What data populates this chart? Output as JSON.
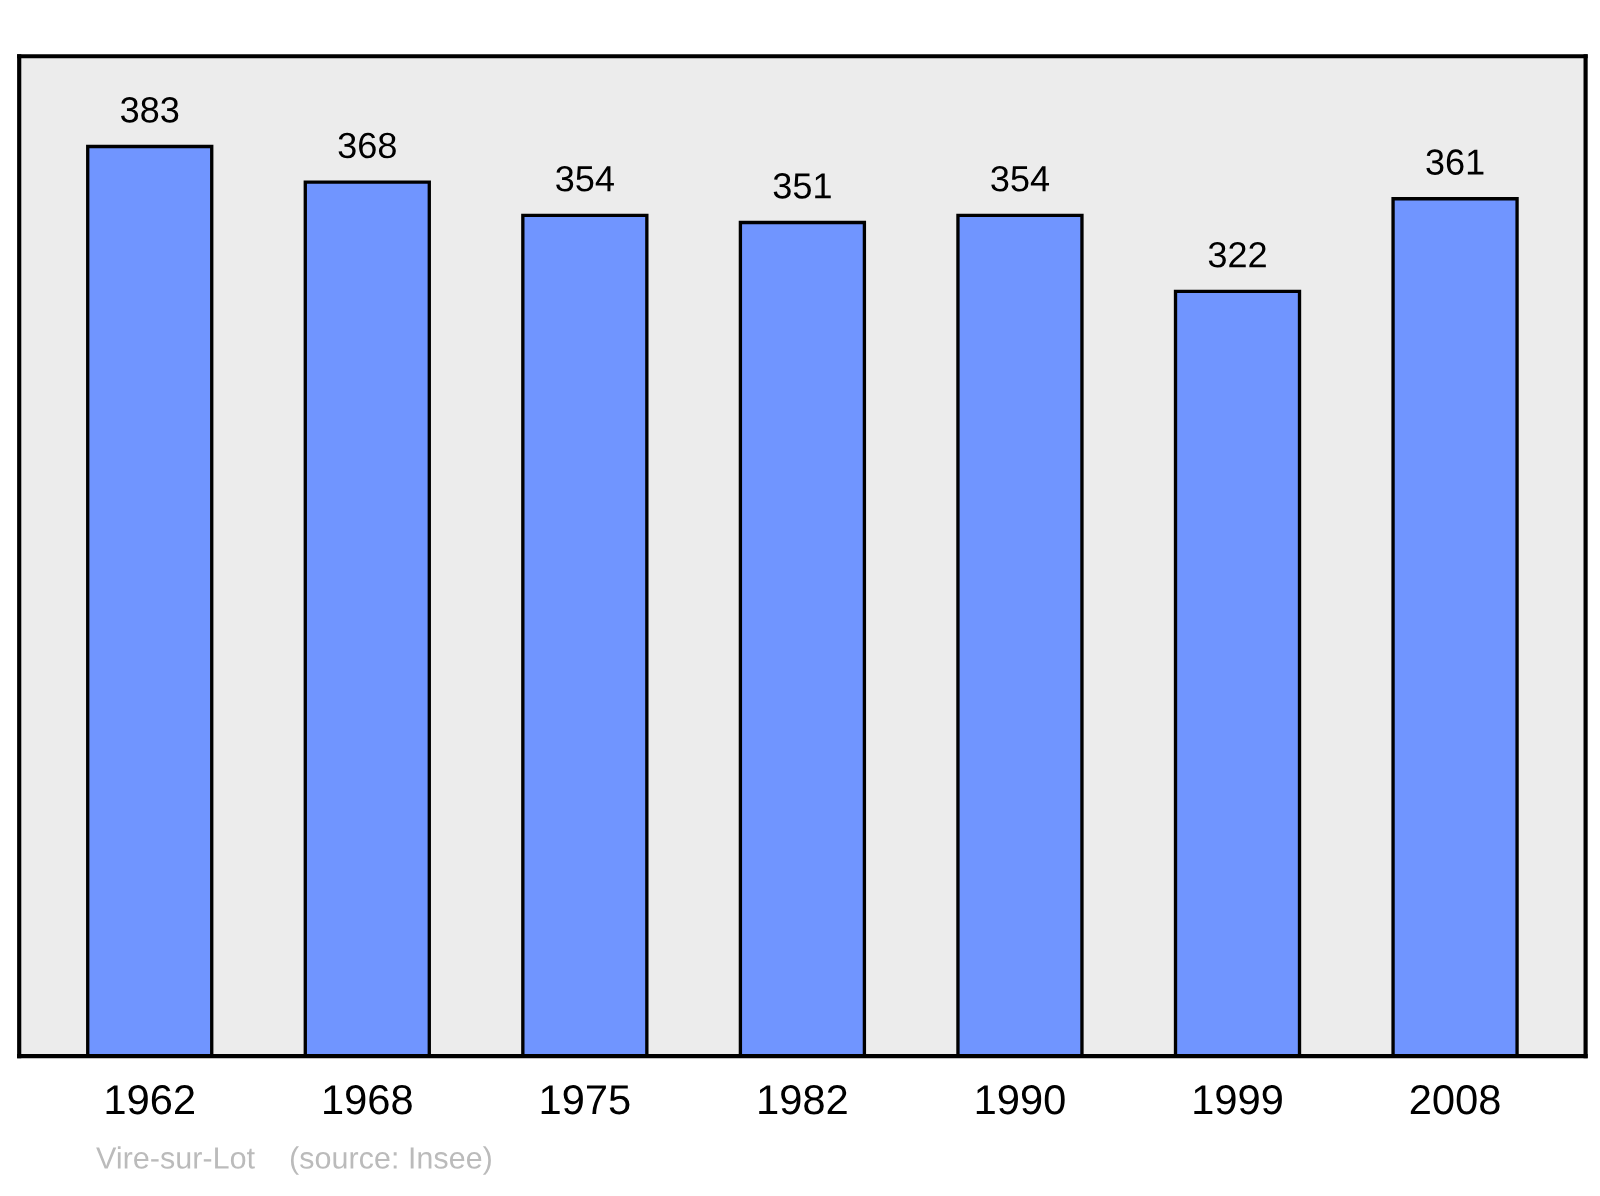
{
  "chart_data": {
    "type": "bar",
    "categories": [
      "1962",
      "1968",
      "1975",
      "1982",
      "1990",
      "1999",
      "2008"
    ],
    "values": [
      383,
      368,
      354,
      351,
      354,
      322,
      361
    ],
    "color": "#7095ff",
    "data_labels": true,
    "ylim": [
      0,
      421
    ],
    "tick_labels": "x",
    "grid": false,
    "legend": false,
    "annotations": [
      "Vire-sur-Lot    (source: Insee)"
    ]
  }
}
